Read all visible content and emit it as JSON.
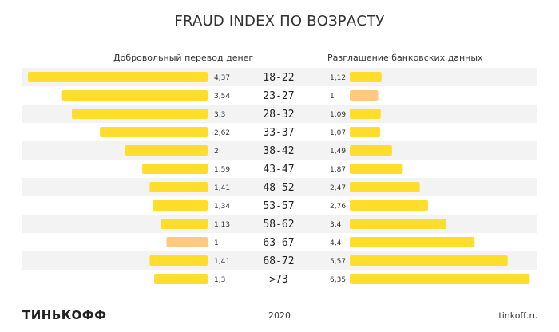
{
  "chart_data": {
    "type": "bar",
    "title": "FRAUD INDEX ПО ВОЗРАСТУ",
    "categories": [
      "18-22",
      "23-27",
      "28-32",
      "33-37",
      "38-42",
      "43-47",
      "48-52",
      "53-57",
      "58-62",
      "63-67",
      "68-72",
      ">73"
    ],
    "series": [
      {
        "name": "Добровольный перевод денег",
        "values": [
          4.37,
          3.54,
          3.3,
          2.62,
          2,
          1.59,
          1.41,
          1.34,
          1.13,
          1,
          1.41,
          1.3
        ],
        "labels": [
          "4,37",
          "3,54",
          "3,3",
          "2,62",
          "2",
          "1,59",
          "1,41",
          "1,34",
          "1,13",
          "1",
          "1,41",
          "1,3"
        ]
      },
      {
        "name": "Разглашение банковских данных",
        "values": [
          1.12,
          1,
          1.09,
          1.07,
          1.49,
          1.87,
          2.47,
          2.76,
          3.4,
          4.4,
          5.57,
          6.35
        ],
        "labels": [
          "1,12",
          "1",
          "1,09",
          "1,07",
          "1,49",
          "1,87",
          "2,47",
          "2,76",
          "3,4",
          "4,4",
          "5,57",
          "6,35"
        ]
      }
    ],
    "colors": {
      "bar": "#FFDD2D",
      "baseline": "#FFCA80",
      "stripe": "#F3F3F3"
    }
  },
  "footer": {
    "logo": "ТИНЬКОФФ",
    "year": "2020",
    "site": "tinkoff.ru"
  }
}
